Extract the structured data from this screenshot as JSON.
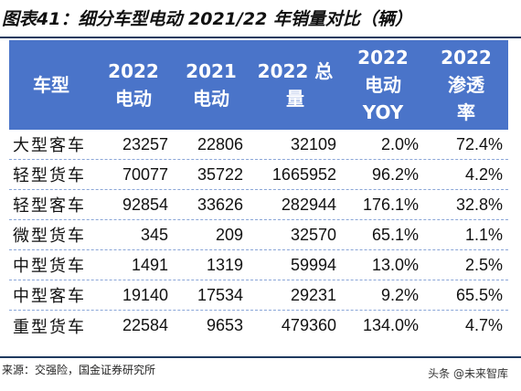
{
  "title": "图表41：细分车型电动 2021/22 年销量对比（辆）",
  "table": {
    "headers": [
      "车型",
      "2022\n电动",
      "2021\n电动",
      "2022 总\n量",
      "2022\n电动\nYOY",
      "2022\n渗透\n率"
    ],
    "rows": [
      [
        "大型客车",
        "23257",
        "22806",
        "32109",
        "2.0%",
        "72.4%"
      ],
      [
        "轻型货车",
        "70077",
        "35722",
        "1665952",
        "96.2%",
        "4.2%"
      ],
      [
        "轻型客车",
        "92854",
        "33626",
        "282944",
        "176.1%",
        "32.8%"
      ],
      [
        "微型货车",
        "345",
        "209",
        "32570",
        "65.1%",
        "1.1%"
      ],
      [
        "中型货车",
        "1491",
        "1319",
        "59994",
        "13.0%",
        "2.5%"
      ],
      [
        "中型客车",
        "19140",
        "17534",
        "29231",
        "9.2%",
        "65.5%"
      ],
      [
        "重型货车",
        "22584",
        "9653",
        "479360",
        "134.0%",
        "4.7%"
      ]
    ]
  },
  "source": "来源：交强险，国金证券研究所",
  "watermark": "头条 @未来智库",
  "colors": {
    "header_bg": "#4a74c9",
    "rule": "#1f3a5f",
    "row_divider": "#8aa6d8"
  }
}
